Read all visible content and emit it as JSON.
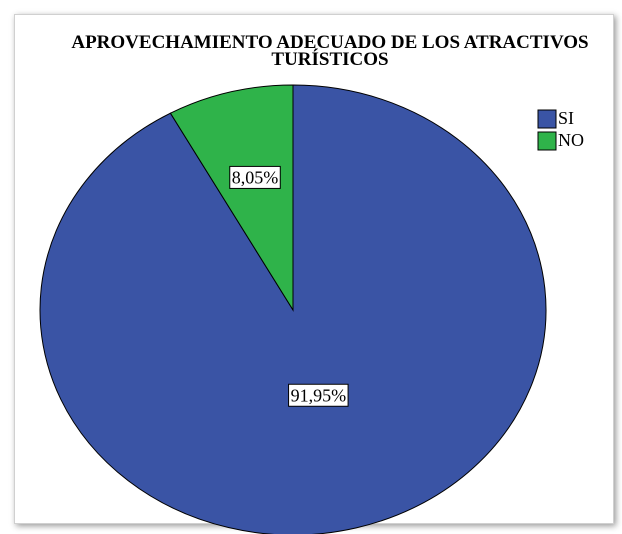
{
  "chart_data": {
    "type": "pie",
    "title": "APROVECHAMIENTO ADECUADO DE LOS ATRACTIVOS TURÍSTICOS",
    "categories": [
      "SI",
      "NO"
    ],
    "values": [
      91.95,
      8.05
    ],
    "value_labels": [
      "91,95%",
      "8,05%"
    ],
    "colors": [
      "#3a54a5",
      "#2fb34a"
    ],
    "legend": "top-right"
  }
}
